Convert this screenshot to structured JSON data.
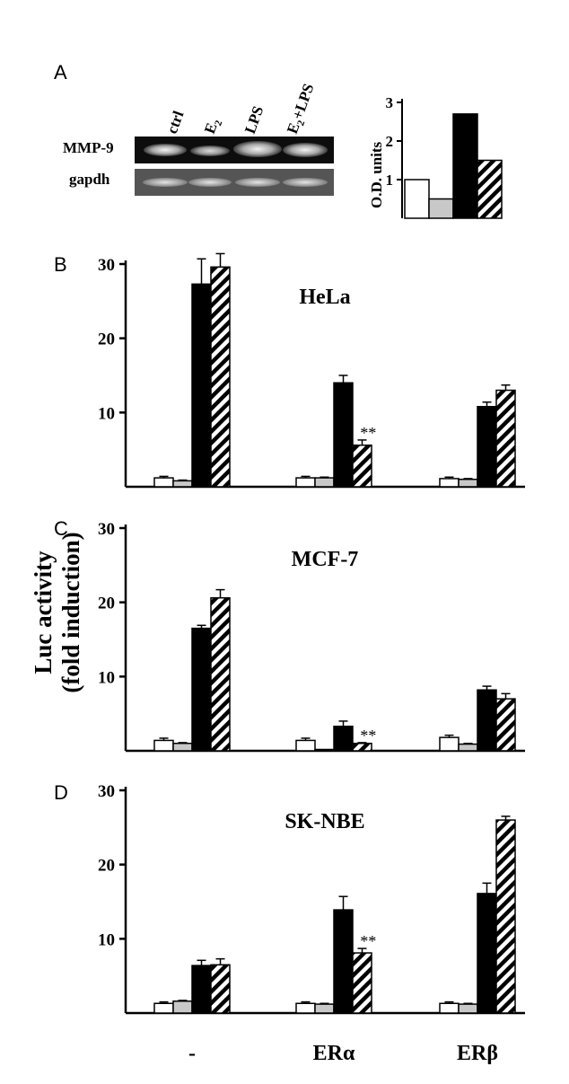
{
  "panel_a": {
    "letter": "A",
    "lanes": [
      "ctrl",
      "E2",
      "LPS",
      "E2+LPS"
    ],
    "rows": [
      "MMP-9",
      "gapdh"
    ],
    "ylabel": "O.D. units",
    "yticks": [
      1,
      2,
      3
    ]
  },
  "panels": [
    {
      "letter": "B",
      "title": "HeLa"
    },
    {
      "letter": "C",
      "title": "MCF-7"
    },
    {
      "letter": "D",
      "title": "SK-NBE"
    }
  ],
  "shared_ylabel": [
    "Luc activity",
    "(fold induction)"
  ],
  "significance_label": "**",
  "fills": {
    "ctrl": "#ffffff",
    "E2": "#c8c8c8",
    "LPS": "#000000",
    "E2+LPS": "hatch"
  },
  "chart_data": [
    {
      "type": "bar",
      "panel": "A",
      "categories": [
        "ctrl",
        "E2",
        "LPS",
        "E2+LPS"
      ],
      "values": [
        1.0,
        0.5,
        2.7,
        1.5
      ],
      "ylabel": "O.D. units",
      "ylim": [
        0,
        3
      ],
      "yticks": [
        1,
        2,
        3
      ]
    },
    {
      "type": "bar",
      "panel": "B",
      "title": "HeLa",
      "categories": [
        "-",
        "ERα",
        "ERβ"
      ],
      "series": [
        {
          "name": "ctrl",
          "values": [
            1.2,
            1.2,
            1.1
          ],
          "errors": [
            0.2,
            0.2,
            0.2
          ]
        },
        {
          "name": "E2",
          "values": [
            0.8,
            1.2,
            1.0
          ],
          "errors": [
            0.1,
            0.1,
            0.1
          ]
        },
        {
          "name": "LPS",
          "values": [
            27.3,
            14.0,
            10.8
          ],
          "errors": [
            3.4,
            1.0,
            0.6
          ]
        },
        {
          "name": "E2+LPS",
          "values": [
            29.6,
            5.6,
            13.0
          ],
          "errors": [
            1.8,
            0.7,
            0.7
          ]
        }
      ],
      "significance": [
        {
          "category": "ERα",
          "series": "E2+LPS",
          "label": "**"
        }
      ],
      "ylim": [
        0,
        30
      ],
      "yticks": [
        10,
        20,
        30
      ]
    },
    {
      "type": "bar",
      "panel": "C",
      "title": "MCF-7",
      "categories": [
        "-",
        "ERα",
        "ERβ"
      ],
      "series": [
        {
          "name": "ctrl",
          "values": [
            1.4,
            1.4,
            1.8
          ],
          "errors": [
            0.3,
            0.3,
            0.3
          ]
        },
        {
          "name": "E2",
          "values": [
            1.0,
            0.1,
            0.9
          ],
          "errors": [
            0.1,
            0.0,
            0.1
          ]
        },
        {
          "name": "LPS",
          "values": [
            16.5,
            3.3,
            8.2
          ],
          "errors": [
            0.4,
            0.7,
            0.5
          ]
        },
        {
          "name": "E2+LPS",
          "values": [
            20.6,
            1.0,
            7.0
          ],
          "errors": [
            1.1,
            0.1,
            0.7
          ]
        }
      ],
      "significance": [
        {
          "category": "ERα",
          "series": "E2+LPS",
          "label": "**"
        }
      ],
      "ylim": [
        0,
        30
      ],
      "yticks": [
        10,
        20,
        30
      ]
    },
    {
      "type": "bar",
      "panel": "D",
      "title": "SK-NBE",
      "categories": [
        "-",
        "ERα",
        "ERβ"
      ],
      "series": [
        {
          "name": "ctrl",
          "values": [
            1.3,
            1.3,
            1.3
          ],
          "errors": [
            0.2,
            0.2,
            0.2
          ]
        },
        {
          "name": "E2",
          "values": [
            1.6,
            1.2,
            1.2
          ],
          "errors": [
            0.1,
            0.1,
            0.1
          ]
        },
        {
          "name": "LPS",
          "values": [
            6.4,
            13.9,
            16.1
          ],
          "errors": [
            0.7,
            1.8,
            1.4
          ]
        },
        {
          "name": "E2+LPS",
          "values": [
            6.5,
            8.1,
            26.0
          ],
          "errors": [
            0.8,
            0.6,
            0.5
          ]
        }
      ],
      "significance": [
        {
          "category": "ERα",
          "series": "E2+LPS",
          "label": "**"
        }
      ],
      "ylim": [
        0,
        30
      ],
      "yticks": [
        10,
        20,
        30
      ]
    }
  ]
}
